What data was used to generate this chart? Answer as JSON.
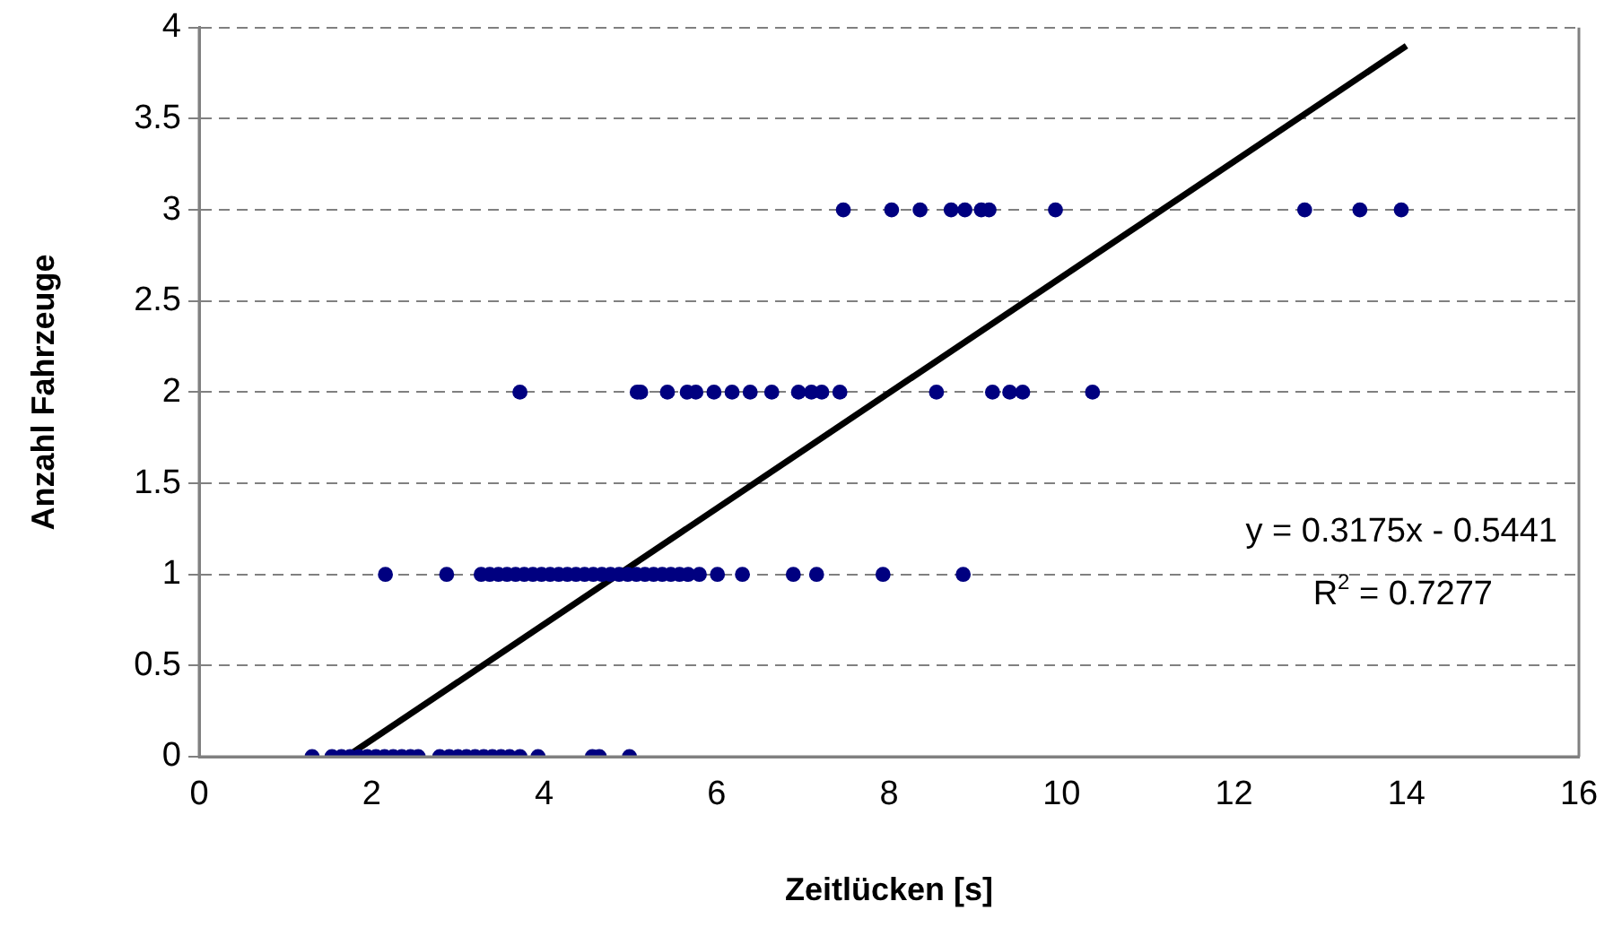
{
  "chart_data": {
    "type": "scatter",
    "xlabel": "Zeitlücken [s]",
    "ylabel": "Anzahl Fahrzeuge",
    "series": [
      {
        "color": "#000080",
        "marker": "circle",
        "x": [
          1.31,
          1.54,
          1.65,
          1.75,
          1.85,
          1.95,
          2.05,
          2.15,
          2.25,
          2.35,
          2.45,
          2.54,
          2.79,
          2.9,
          3.0,
          3.1,
          3.2,
          3.3,
          3.4,
          3.5,
          3.6,
          3.72,
          3.93,
          4.56,
          4.64,
          4.99,
          2.16,
          2.87,
          3.27,
          3.37,
          3.47,
          3.57,
          3.67,
          3.77,
          3.87,
          3.97,
          4.07,
          4.17,
          4.27,
          4.37,
          4.47,
          4.57,
          4.67,
          4.77,
          4.87,
          4.97,
          5.07,
          5.17,
          5.27,
          5.37,
          5.47,
          5.57,
          5.67,
          5.8,
          6.01,
          6.3,
          6.89,
          7.16,
          7.93,
          8.86,
          3.72,
          5.08,
          5.12,
          5.43,
          5.66,
          5.76,
          5.97,
          6.18,
          6.39,
          6.64,
          6.95,
          7.1,
          7.22,
          7.43,
          8.55,
          9.2,
          9.4,
          9.55,
          10.36,
          7.47,
          8.03,
          8.36,
          8.72,
          8.88,
          9.07,
          9.16,
          9.93,
          12.82,
          13.46,
          13.94
        ],
        "values": [
          0,
          0,
          0,
          0,
          0,
          0,
          0,
          0,
          0,
          0,
          0,
          0,
          0,
          0,
          0,
          0,
          0,
          0,
          0,
          0,
          0,
          0,
          0,
          0,
          0,
          0,
          1,
          1,
          1,
          1,
          1,
          1,
          1,
          1,
          1,
          1,
          1,
          1,
          1,
          1,
          1,
          1,
          1,
          1,
          1,
          1,
          1,
          1,
          1,
          1,
          1,
          1,
          1,
          1,
          1,
          1,
          1,
          1,
          1,
          1,
          2,
          2,
          2,
          2,
          2,
          2,
          2,
          2,
          2,
          2,
          2,
          2,
          2,
          2,
          2,
          2,
          2,
          2,
          2,
          3,
          3,
          3,
          3,
          3,
          3,
          3,
          3,
          3,
          3,
          3
        ]
      },
      {
        "type": "line",
        "color": "#000000",
        "line_style": "solid",
        "marker": "none",
        "x": [
          1.71,
          14
        ],
        "values": [
          0,
          3.9
        ]
      }
    ],
    "xlim": [
      0,
      16
    ],
    "xticks": [
      0,
      2,
      4,
      6,
      8,
      10,
      12,
      14,
      16
    ],
    "ylim": [
      0,
      4
    ],
    "yticks": [
      0,
      0.5,
      1,
      1.5,
      2,
      2.5,
      3,
      3.5,
      4
    ],
    "grid": "y",
    "legend": false,
    "annotations": [
      "y = 0.3175x - 0.5441",
      "R$^{2}$ = 0.7277"
    ]
  }
}
